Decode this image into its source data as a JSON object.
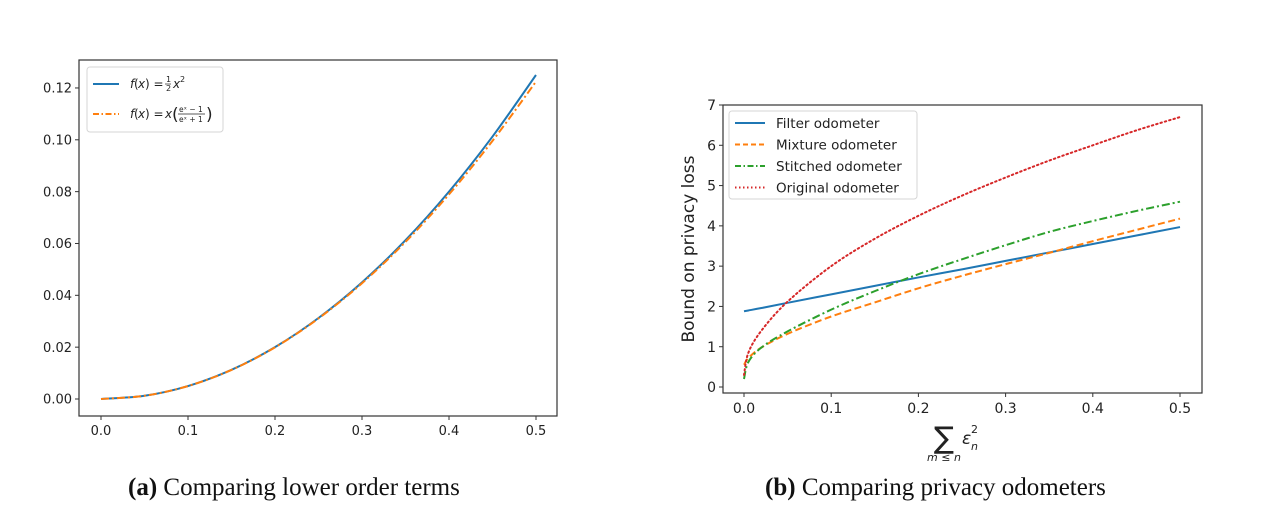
{
  "chart_data": [
    {
      "type": "line",
      "id": "a",
      "title": "",
      "caption_label": "(a)",
      "caption_text": "Comparing lower order terms",
      "xlabel": "",
      "ylabel": "",
      "xlim": [
        -0.025,
        0.525
      ],
      "ylim": [
        -0.00625,
        0.13125
      ],
      "xticks": [
        0.0,
        0.1,
        0.2,
        0.3,
        0.4,
        0.5
      ],
      "xtick_labels": [
        "0.0",
        "0.1",
        "0.2",
        "0.3",
        "0.4",
        "0.5"
      ],
      "yticks": [
        0.0,
        0.02,
        0.04,
        0.06,
        0.08,
        0.1,
        0.12
      ],
      "ytick_labels": [
        "0.00",
        "0.02",
        "0.04",
        "0.06",
        "0.08",
        "0.10",
        "0.12"
      ],
      "grid": false,
      "legend_position": "upper left",
      "x": [
        0.0,
        0.05,
        0.1,
        0.15,
        0.2,
        0.25,
        0.3,
        0.35,
        0.4,
        0.45,
        0.5
      ],
      "series": [
        {
          "name": "f(x) = ½x²",
          "color": "#1f77b4",
          "style": "solid",
          "values": [
            0.0,
            0.00125,
            0.005,
            0.01125,
            0.02,
            0.03125,
            0.045,
            0.06125,
            0.08,
            0.10125,
            0.125
          ]
        },
        {
          "name": "f(x) = x((eˣ−1)/(eˣ+1))",
          "color": "#ff7f0e",
          "style": "dashdot",
          "values": [
            0.0,
            0.00125,
            0.005,
            0.01122,
            0.01993,
            0.03109,
            0.04466,
            0.06062,
            0.07894,
            0.09959,
            0.12246
          ]
        }
      ]
    },
    {
      "type": "line",
      "id": "b",
      "title": "",
      "caption_label": "(b)",
      "caption_text": "Comparing privacy odometers",
      "xlabel": "Σ_{m≤n} ε_n²",
      "ylabel": "Bound on privacy loss",
      "xlim": [
        -0.025,
        0.525
      ],
      "ylim": [
        -0.15,
        7.0
      ],
      "xticks": [
        0.0,
        0.1,
        0.2,
        0.3,
        0.4,
        0.5
      ],
      "xtick_labels": [
        "0.0",
        "0.1",
        "0.2",
        "0.3",
        "0.4",
        "0.5"
      ],
      "yticks": [
        0,
        1,
        2,
        3,
        4,
        5,
        6,
        7
      ],
      "ytick_labels": [
        "0",
        "1",
        "2",
        "3",
        "4",
        "5",
        "6",
        "7"
      ],
      "grid": false,
      "legend_position": "upper left",
      "x": [
        0.0,
        0.005,
        0.02,
        0.05,
        0.1,
        0.15,
        0.2,
        0.25,
        0.3,
        0.35,
        0.4,
        0.45,
        0.5
      ],
      "series": [
        {
          "name": "Filter odometer",
          "color": "#1f77b4",
          "style": "solid",
          "values": [
            1.88,
            1.9,
            1.96,
            2.09,
            2.3,
            2.51,
            2.72,
            2.92,
            3.13,
            3.34,
            3.55,
            3.76,
            3.97
          ]
        },
        {
          "name": "Mixture odometer",
          "color": "#ff7f0e",
          "style": "dashed",
          "values": [
            0.55,
            0.72,
            0.98,
            1.32,
            1.75,
            2.1,
            2.45,
            2.76,
            3.05,
            3.33,
            3.62,
            3.9,
            4.18
          ]
        },
        {
          "name": "Stitched odometer",
          "color": "#2ca02c",
          "style": "dashdot",
          "values": [
            0.2,
            0.62,
            0.98,
            1.38,
            1.92,
            2.38,
            2.8,
            3.17,
            3.52,
            3.85,
            4.12,
            4.37,
            4.6
          ]
        },
        {
          "name": "Original odometer",
          "color": "#d62728",
          "style": "dotted",
          "values": [
            0.3,
            0.85,
            1.4,
            2.12,
            3.0,
            3.68,
            4.25,
            4.75,
            5.2,
            5.62,
            6.0,
            6.37,
            6.7
          ]
        }
      ]
    }
  ],
  "captions": {
    "a_label": "(a)",
    "a_text": "Comparing lower order terms",
    "b_label": "(b)",
    "b_text": "Comparing privacy odometers"
  }
}
